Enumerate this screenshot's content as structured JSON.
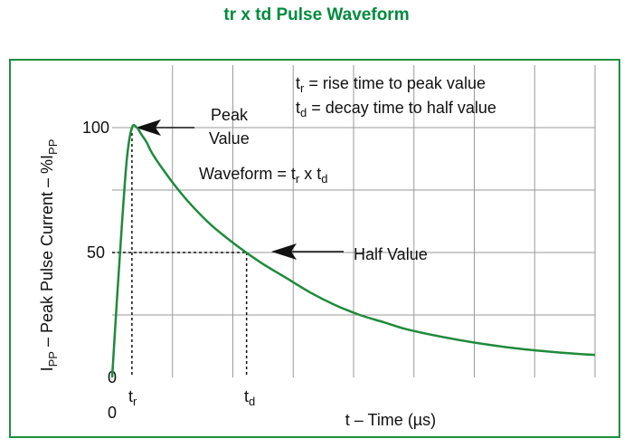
{
  "chart_data": {
    "type": "line",
    "title": "tr x td Pulse Waveform",
    "ylabel": {
      "main": "I",
      "sub1": "PP",
      "mid": " – Peak Pulse Current – %I",
      "sub2": "PP"
    },
    "xlabel": "t – Time (µs)",
    "ylim": [
      0,
      125
    ],
    "xlim": [
      0,
      9.75
    ],
    "yticks": [
      "0",
      "50",
      "100"
    ],
    "xtick_origin": "0",
    "xtick_tr": {
      "main": "t",
      "sub": "r"
    },
    "xtick_td": {
      "main": "t",
      "sub": "d"
    },
    "grid": true,
    "color": "#1f8a3c",
    "series": [
      {
        "x": [
          0,
          0.1,
          0.2,
          0.3,
          0.4,
          0.5,
          0.6,
          0.7,
          0.8,
          1.0,
          1.3,
          1.6,
          2.0,
          2.5,
          3.0,
          3.5,
          4.0,
          4.5,
          5.0,
          5.5,
          6.0,
          7.0,
          8.0,
          9.0,
          9.75
        ],
        "y": [
          0,
          32,
          62,
          88,
          100,
          100,
          97,
          94,
          90,
          84,
          76,
          69,
          61,
          53,
          46,
          40,
          34,
          29,
          25,
          22,
          19,
          15,
          12,
          10,
          9
        ]
      }
    ],
    "annotations": {
      "peak_line1": "Peak",
      "peak_line2": "Value",
      "half": "Half Value",
      "waveform": {
        "text": "Waveform = t",
        "sub1": "r",
        "mid": " x t",
        "sub2": "d"
      },
      "legend_tr": {
        "main": "t",
        "sub": "r",
        "rest": " = rise time to peak value"
      },
      "legend_td": {
        "main": "t",
        "sub": "d",
        "rest": " = decay time to half value"
      }
    }
  }
}
